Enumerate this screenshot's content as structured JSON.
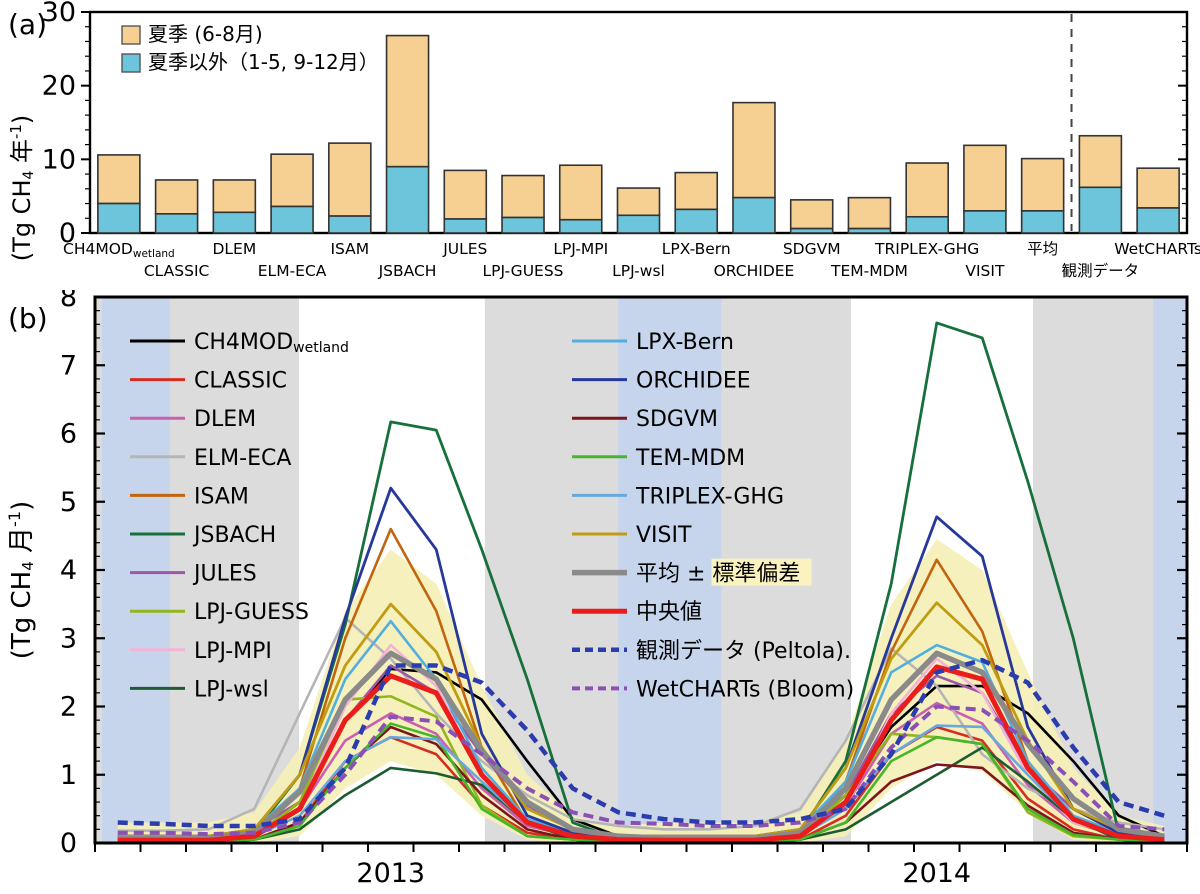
{
  "chart_data": [
    {
      "type": "bar",
      "tag": "(a)",
      "ylabel_parts": [
        {
          "t": "(Tg CH"
        },
        {
          "t": "4",
          "sub": true
        },
        {
          "t": " 年"
        },
        {
          "t": "-1",
          "sup": true
        },
        {
          "t": ")"
        }
      ],
      "ylim": [
        0,
        30
      ],
      "y_major_ticks": [
        0,
        10,
        20,
        30
      ],
      "y_minor_step": 2,
      "legend": [
        {
          "label": "夏季 (6-8月)",
          "color": "#f6d092"
        },
        {
          "label": "夏季以外（1-5, 9-12月）",
          "color": "#6cc5da"
        }
      ],
      "colors": {
        "summer": "#f6d092",
        "non_summer": "#6cc5da",
        "border": "#333333",
        "separator": "#444444"
      },
      "separator_before_index": 17,
      "categories": [
        {
          "label": "CH4MOD",
          "label_sub": "wetland",
          "row": 1,
          "total": 10.6,
          "non_summer": 4.0
        },
        {
          "label": "CLASSIC",
          "row": 2,
          "total": 7.2,
          "non_summer": 2.6
        },
        {
          "label": "DLEM",
          "row": 1,
          "total": 7.2,
          "non_summer": 2.8
        },
        {
          "label": "ELM-ECA",
          "row": 2,
          "total": 10.7,
          "non_summer": 3.6
        },
        {
          "label": "ISAM",
          "row": 1,
          "total": 12.2,
          "non_summer": 2.3
        },
        {
          "label": "JSBACH",
          "row": 2,
          "total": 26.8,
          "non_summer": 9.0
        },
        {
          "label": "JULES",
          "row": 1,
          "total": 8.5,
          "non_summer": 1.9
        },
        {
          "label": "LPJ-GUESS",
          "row": 2,
          "total": 7.8,
          "non_summer": 2.1
        },
        {
          "label": "LPJ-MPI",
          "row": 1,
          "total": 9.2,
          "non_summer": 1.8
        },
        {
          "label": "LPJ-wsl",
          "row": 2,
          "total": 6.1,
          "non_summer": 2.4
        },
        {
          "label": "LPX-Bern",
          "row": 1,
          "total": 8.2,
          "non_summer": 3.2
        },
        {
          "label": "ORCHIDEE",
          "row": 2,
          "total": 17.7,
          "non_summer": 4.8
        },
        {
          "label": "SDGVM",
          "row": 1,
          "total": 4.5,
          "non_summer": 0.6
        },
        {
          "label": "TEM-MDM",
          "row": 2,
          "total": 4.8,
          "non_summer": 0.6
        },
        {
          "label": "TRIPLEX-GHG",
          "row": 1,
          "total": 9.5,
          "non_summer": 2.2
        },
        {
          "label": "VISIT",
          "row": 2,
          "total": 11.9,
          "non_summer": 3.0
        },
        {
          "label": "平均",
          "row": 1,
          "total": 10.1,
          "non_summer": 3.0
        },
        {
          "label": "観測データ",
          "row": 2,
          "total": 13.2,
          "non_summer": 6.2
        },
        {
          "label": "WetCHARTs",
          "row": 1,
          "total": 8.8,
          "non_summer": 3.4
        }
      ]
    },
    {
      "type": "line",
      "tag": "(b)",
      "ylabel_parts": [
        {
          "t": "(Tg CH"
        },
        {
          "t": "4",
          "sub": true
        },
        {
          "t": " 月"
        },
        {
          "t": "-1",
          "sup": true
        },
        {
          "t": ")"
        }
      ],
      "ylim": [
        0,
        8
      ],
      "y_major_step": 1,
      "y_minor_step": 0.2,
      "months_total": 24,
      "x_year_labels": [
        {
          "label": "2013",
          "month_center": 6.5
        },
        {
          "label": "2014",
          "month_center": 18.5
        }
      ],
      "bands": {
        "gray_color": "#dcdcdc",
        "blue_color": "#c6d5ec",
        "gray": [
          [
            0.0,
            0.0064
          ],
          [
            0.0687,
            0.1868
          ],
          [
            0.357,
            0.479
          ],
          [
            0.574,
            0.6923
          ],
          [
            0.859,
            0.9689
          ]
        ],
        "blue": [
          [
            0.0064,
            0.0687
          ],
          [
            0.479,
            0.574
          ],
          [
            0.9689,
            1.0
          ]
        ]
      },
      "std_band": {
        "color": "#f5f0b6",
        "upper": [
          0.3,
          0.3,
          0.3,
          0.45,
          1.4,
          3.4,
          4.3,
          3.8,
          2.3,
          1.0,
          0.4,
          0.25,
          0.3,
          0.3,
          0.3,
          0.45,
          1.5,
          3.5,
          4.45,
          4.0,
          2.5,
          1.1,
          0.4,
          0.25
        ],
        "lower": [
          0,
          0,
          0,
          0,
          0.1,
          0.8,
          1.2,
          1.0,
          0.4,
          0.05,
          0,
          0,
          0,
          0,
          0,
          0,
          0.1,
          0.8,
          1.2,
          1.05,
          0.45,
          0.05,
          0,
          0
        ]
      },
      "series": [
        {
          "name": "CH4MOD",
          "name_sub": "wetland",
          "color": "#000000",
          "width": 2.6,
          "values": [
            0.05,
            0.05,
            0.05,
            0.1,
            0.6,
            1.8,
            2.55,
            2.5,
            2.1,
            1.2,
            0.35,
            0.1,
            0.05,
            0.05,
            0.05,
            0.1,
            0.7,
            1.7,
            2.3,
            2.3,
            1.9,
            1.2,
            0.4,
            0.1
          ]
        },
        {
          "name": "CLASSIC",
          "color": "#d62d20",
          "width": 2.6,
          "values": [
            0.02,
            0.02,
            0.02,
            0.05,
            0.3,
            1.2,
            1.55,
            1.3,
            0.55,
            0.15,
            0.05,
            0.02,
            0.02,
            0.02,
            0.02,
            0.05,
            0.4,
            1.3,
            1.7,
            1.5,
            0.65,
            0.2,
            0.05,
            0.02
          ]
        },
        {
          "name": "DLEM",
          "color": "#c95fb0",
          "width": 2.6,
          "values": [
            0.05,
            0.05,
            0.05,
            0.1,
            0.5,
            1.5,
            1.9,
            1.6,
            0.8,
            0.25,
            0.1,
            0.05,
            0.05,
            0.05,
            0.05,
            0.1,
            0.55,
            1.6,
            2.05,
            1.75,
            0.85,
            0.3,
            0.1,
            0.08
          ]
        },
        {
          "name": "ELM-ECA",
          "color": "#b5b5b5",
          "width": 2.6,
          "values": [
            0.18,
            0.18,
            0.2,
            0.5,
            1.9,
            3.3,
            2.7,
            1.9,
            1.2,
            0.7,
            0.35,
            0.25,
            0.2,
            0.2,
            0.25,
            0.5,
            1.5,
            2.85,
            2.3,
            1.3,
            0.8,
            0.5,
            0.3,
            0.2
          ]
        },
        {
          "name": "ISAM",
          "color": "#c2650f",
          "width": 2.6,
          "values": [
            0.05,
            0.05,
            0.05,
            0.15,
            0.8,
            3.0,
            4.6,
            3.4,
            1.4,
            0.3,
            0.1,
            0.05,
            0.05,
            0.05,
            0.05,
            0.15,
            0.9,
            2.8,
            4.15,
            3.1,
            1.2,
            0.3,
            0.1,
            0.05
          ]
        },
        {
          "name": "JSBACH",
          "color": "#17703c",
          "width": 2.8,
          "values": [
            0.05,
            0.05,
            0.05,
            0.15,
            1.0,
            3.2,
            6.17,
            6.05,
            4.3,
            2.4,
            0.3,
            0.05,
            0.05,
            0.05,
            0.05,
            0.15,
            1.2,
            3.8,
            7.62,
            7.4,
            5.3,
            3.0,
            0.15,
            0.05
          ]
        },
        {
          "name": "JULES",
          "color": "#9c57a6",
          "width": 2.6,
          "values": [
            0.1,
            0.1,
            0.1,
            0.2,
            0.6,
            1.8,
            2.6,
            2.2,
            1.3,
            0.55,
            0.2,
            0.1,
            0.1,
            0.1,
            0.1,
            0.2,
            0.7,
            1.9,
            2.45,
            2.2,
            1.1,
            0.5,
            0.2,
            0.1
          ]
        },
        {
          "name": "LPJ-GUESS",
          "color": "#92b71e",
          "width": 2.6,
          "values": [
            0.02,
            0.02,
            0.02,
            0.1,
            0.6,
            2.1,
            2.15,
            1.85,
            0.55,
            0.1,
            0.05,
            0.02,
            0.02,
            0.02,
            0.02,
            0.1,
            0.7,
            1.6,
            1.55,
            1.45,
            0.45,
            0.1,
            0.05,
            0.02
          ]
        },
        {
          "name": "LPJ-MPI",
          "color": "#f2b3d6",
          "width": 2.6,
          "values": [
            0.05,
            0.05,
            0.05,
            0.1,
            0.5,
            2.0,
            2.9,
            2.3,
            1.0,
            0.3,
            0.1,
            0.05,
            0.05,
            0.05,
            0.05,
            0.1,
            0.5,
            1.9,
            2.7,
            2.2,
            1.0,
            0.3,
            0.12,
            0.1
          ]
        },
        {
          "name": "LPJ-wsl",
          "color": "#1d5c33",
          "width": 2.6,
          "values": [
            0.02,
            0.02,
            0.02,
            0.05,
            0.2,
            0.7,
            1.1,
            1.02,
            0.85,
            0.3,
            0.05,
            0.02,
            0.02,
            0.02,
            0.02,
            0.05,
            0.2,
            0.6,
            1.0,
            1.4,
            0.9,
            0.35,
            0.05,
            0.02
          ]
        },
        {
          "name": "LPX-Bern",
          "color": "#53aede",
          "width": 2.6,
          "values": [
            0.1,
            0.1,
            0.1,
            0.2,
            0.8,
            2.4,
            3.25,
            2.4,
            1.1,
            0.35,
            0.15,
            0.1,
            0.1,
            0.1,
            0.1,
            0.2,
            0.9,
            2.5,
            2.9,
            2.65,
            1.2,
            0.4,
            0.15,
            0.1
          ]
        },
        {
          "name": "ORCHIDEE",
          "color": "#27389b",
          "width": 2.8,
          "values": [
            0.1,
            0.1,
            0.1,
            0.2,
            1.0,
            3.3,
            5.2,
            4.3,
            1.6,
            0.4,
            0.15,
            0.1,
            0.1,
            0.1,
            0.1,
            0.2,
            1.1,
            3.0,
            4.78,
            4.2,
            1.7,
            0.5,
            0.15,
            0.1
          ]
        },
        {
          "name": "SDGVM",
          "color": "#7d151d",
          "width": 2.6,
          "values": [
            0.02,
            0.02,
            0.02,
            0.05,
            0.3,
            1.1,
            1.7,
            1.45,
            0.7,
            0.2,
            0.05,
            0.02,
            0.02,
            0.02,
            0.02,
            0.05,
            0.3,
            0.9,
            1.15,
            1.1,
            0.55,
            0.15,
            0.05,
            0.02
          ]
        },
        {
          "name": "TEM-MDM",
          "color": "#46b62c",
          "width": 2.6,
          "values": [
            0.02,
            0.02,
            0.02,
            0.05,
            0.25,
            1.1,
            1.75,
            1.55,
            0.5,
            0.1,
            0.05,
            0.02,
            0.02,
            0.02,
            0.02,
            0.05,
            0.3,
            1.2,
            1.55,
            1.45,
            0.5,
            0.12,
            0.05,
            0.02
          ]
        },
        {
          "name": "TRIPLEX-GHG",
          "color": "#67a9dc",
          "width": 2.6,
          "values": [
            0.05,
            0.05,
            0.05,
            0.1,
            0.4,
            1.2,
            1.55,
            1.52,
            0.9,
            0.3,
            0.1,
            0.05,
            0.05,
            0.05,
            0.05,
            0.1,
            0.5,
            1.3,
            1.72,
            1.7,
            1.0,
            0.35,
            0.1,
            0.05
          ]
        },
        {
          "name": "VISIT",
          "color": "#c09c13",
          "width": 2.8,
          "values": [
            0.1,
            0.1,
            0.1,
            0.2,
            1.0,
            2.6,
            3.5,
            2.8,
            1.4,
            0.5,
            0.2,
            0.1,
            0.1,
            0.1,
            0.1,
            0.2,
            1.1,
            2.7,
            3.52,
            2.9,
            1.5,
            0.5,
            0.2,
            0.1
          ]
        },
        {
          "name": "平均 ± ",
          "name_highlight": "標準偏差",
          "highlight_color": "#faf3c0",
          "color": "#8a8a8a",
          "width": 5.5,
          "values": [
            0.07,
            0.07,
            0.07,
            0.15,
            0.75,
            2.1,
            2.78,
            2.4,
            1.35,
            0.6,
            0.2,
            0.1,
            0.07,
            0.07,
            0.07,
            0.15,
            0.8,
            2.1,
            2.78,
            2.5,
            1.45,
            0.65,
            0.2,
            0.1
          ]
        },
        {
          "name": "中央値",
          "color": "#ea1c1c",
          "width": 5.0,
          "values": [
            0.04,
            0.04,
            0.04,
            0.1,
            0.5,
            1.8,
            2.45,
            2.2,
            1.0,
            0.3,
            0.1,
            0.05,
            0.04,
            0.04,
            0.04,
            0.1,
            0.6,
            1.8,
            2.58,
            2.4,
            1.1,
            0.35,
            0.1,
            0.05
          ]
        },
        {
          "name": "観測データ (Peltola).",
          "color": "#2b3dae",
          "width": 4.5,
          "dash": [
            10,
            6
          ],
          "values": [
            0.3,
            0.28,
            0.25,
            0.25,
            0.35,
            1.1,
            2.6,
            2.6,
            2.35,
            1.65,
            0.8,
            0.45,
            0.35,
            0.3,
            0.3,
            0.35,
            0.5,
            1.3,
            2.5,
            2.68,
            2.35,
            1.4,
            0.6,
            0.4
          ]
        },
        {
          "name": "WetCHARTs (Bloom)",
          "color": "#8b50b4",
          "width": 4.0,
          "dash": [
            10,
            6
          ],
          "values": [
            0.15,
            0.15,
            0.13,
            0.15,
            0.3,
            1.0,
            1.85,
            1.78,
            1.3,
            0.8,
            0.45,
            0.3,
            0.28,
            0.25,
            0.25,
            0.3,
            0.5,
            1.4,
            2.0,
            1.95,
            1.5,
            0.9,
            0.25,
            0.2
          ]
        }
      ],
      "legend_col1_indices": [
        0,
        1,
        2,
        3,
        4,
        5,
        6,
        7,
        8,
        9
      ],
      "legend_col2_indices": [
        10,
        11,
        12,
        13,
        14,
        15,
        16,
        17,
        18,
        19
      ]
    }
  ]
}
